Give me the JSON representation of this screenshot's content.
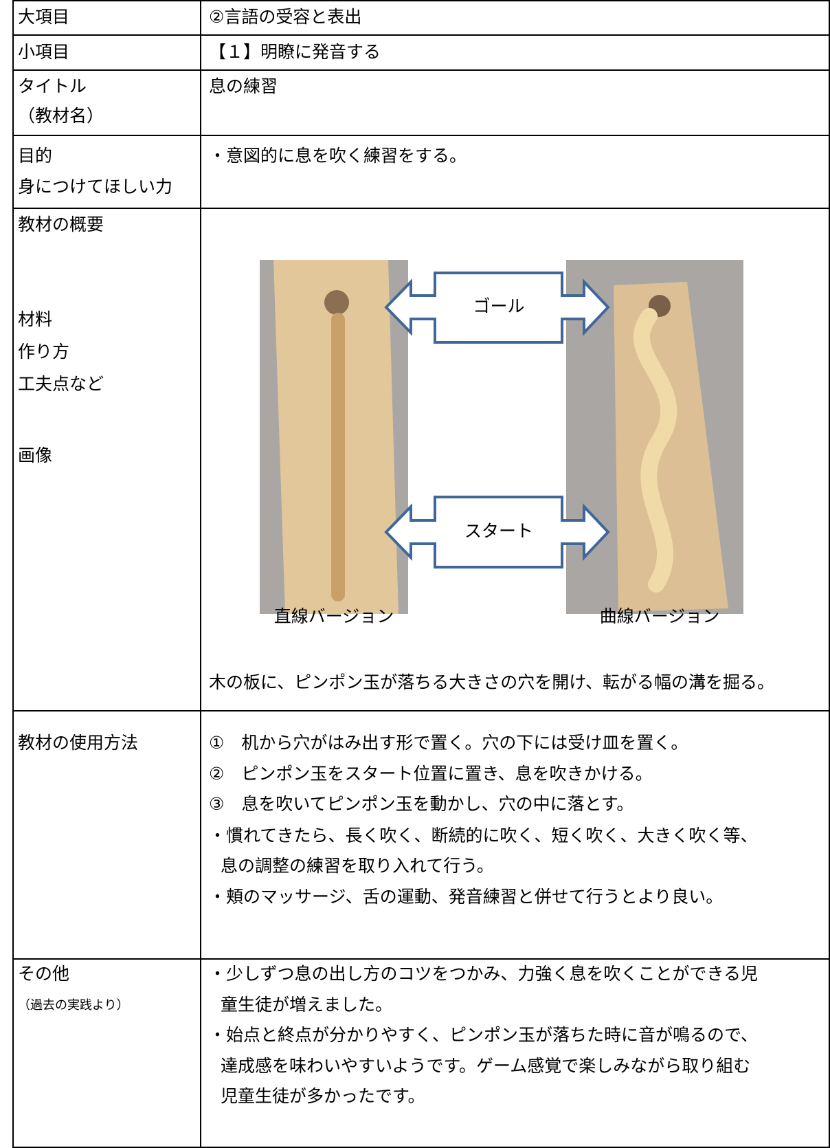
{
  "table": {
    "rows": [
      {
        "label": [
          "大項目"
        ],
        "content": [
          "②言語の受容と表出"
        ]
      },
      {
        "label": [
          "小項目"
        ],
        "content": [
          "【１】明瞭に発音する"
        ]
      },
      {
        "label": [
          "タイトル",
          "（教材名）"
        ],
        "content": [
          "息の練習"
        ]
      },
      {
        "label": [
          "目的",
          "身につけてほしい力"
        ],
        "content": [
          "・意図的に息を吹く練習をする。"
        ]
      },
      {
        "label": [
          "教材の概要",
          "材料",
          "作り方",
          "工夫点など",
          "画像"
        ],
        "image": {
          "goal": "ゴール",
          "start": "スタート",
          "captions": [
            "直線バージョン",
            "曲線バージョン"
          ]
        },
        "content": [
          "木の板に、ピンポン玉が落ちる大きさの穴を開け、転がる幅の溝を掘る。"
        ]
      },
      {
        "label": [
          "教材の使用方法"
        ],
        "content": [
          "①　机から穴がはみ出す形で置く。穴の下には受け皿を置く。",
          "②　ピンポン玉をスタート位置に置き、息を吹きかける。",
          "③　息を吹いてピンポン玉を動かし、穴の中に落とす。",
          "・慣れてきたら、長く吹く、断続的に吹く、短く吹く、大きく吹く等、",
          "息の調整の練習を取り入れて行う。",
          "・頬のマッサージ、舌の運動、発音練習と併せて行うとより良い。"
        ]
      },
      {
        "label": [
          "その他",
          "（過去の実践より）"
        ],
        "content": [
          "・少しずつ息の出し方のコツをつかみ、力強く息を吹くことができる児",
          "童生徒が増えました。",
          "・始点と終点が分かりやすく、ピンポン玉が落ちた時に音が鳴るので、",
          "達成感を味わいやすいようです。ゲーム感覚で楽しみながら取り組む",
          "児童生徒が多かったです。"
        ]
      }
    ]
  }
}
